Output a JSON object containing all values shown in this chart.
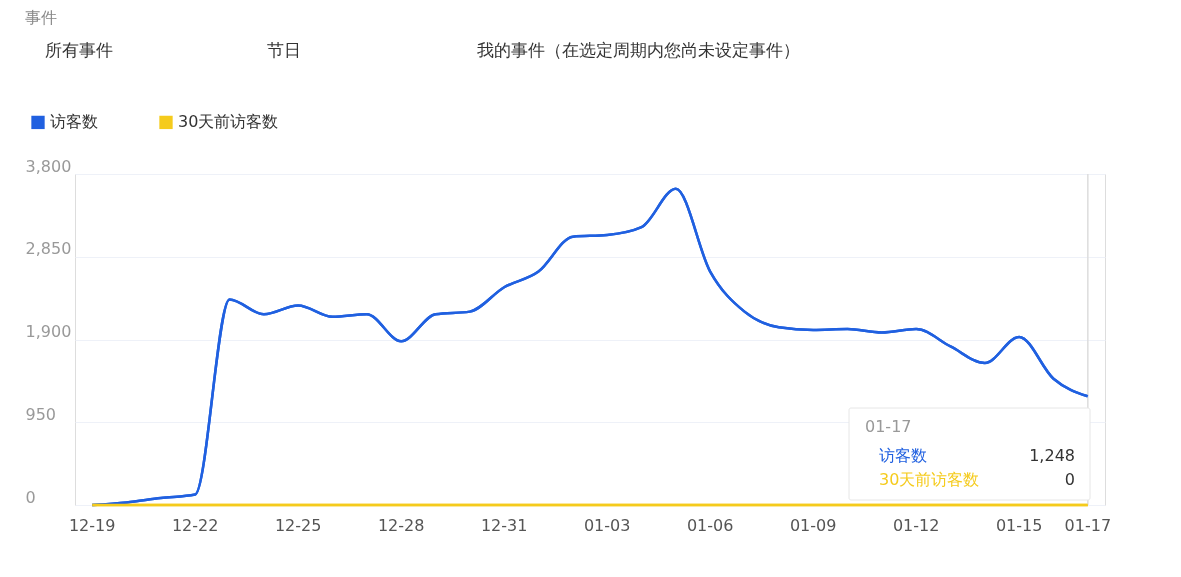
{
  "chart_data": {
    "type": "line",
    "categories": [
      "12-19",
      null,
      null,
      "12-22",
      null,
      null,
      "12-25",
      null,
      null,
      "12-28",
      null,
      null,
      "12-31",
      null,
      null,
      "01-03",
      null,
      null,
      "01-06",
      null,
      null,
      "01-09",
      null,
      null,
      "01-12",
      null,
      null,
      "01-15",
      null,
      "01-17"
    ],
    "series": [
      {
        "name": "访客数",
        "color": "#2060e0",
        "values": [
          0,
          30,
          80,
          120,
          2360,
          2190,
          2290,
          2160,
          2190,
          1880,
          2190,
          2220,
          2500,
          2680,
          3080,
          3100,
          3190,
          3630,
          2680,
          2220,
          2040,
          2010,
          2020,
          1980,
          2020,
          1820,
          1630,
          1930,
          1450,
          1248
        ]
      },
      {
        "name": "30天前访客数",
        "color": "#f5cb1c",
        "values": [
          0,
          0,
          0,
          0,
          0,
          0,
          0,
          0,
          0,
          0,
          0,
          0,
          0,
          0,
          0,
          0,
          0,
          0,
          0,
          0,
          0,
          0,
          0,
          0,
          0,
          0,
          0,
          0,
          0,
          0
        ]
      }
    ],
    "ylim": [
      0,
      3800
    ],
    "yticks": [
      0,
      950,
      {
        "value": 1900,
        "label": "1,900"
      },
      {
        "value": 2850,
        "label": "2,850"
      },
      {
        "value": 3800,
        "label": "3,800"
      }
    ],
    "grid": "y",
    "legend": "top left",
    "marker": "none",
    "line_style": "solid",
    "ref_lines": [
      {
        "axis": "x",
        "value": "01-17",
        "label": null,
        "color": "#dddddd"
      }
    ],
    "annotations": [
      "事件",
      "所有事件",
      "节日",
      "我的事件（在选定周期内您尚未设定事件）",
      "01-17",
      "访客数",
      "1,248",
      "30天前访客数",
      "0"
    ]
  }
}
